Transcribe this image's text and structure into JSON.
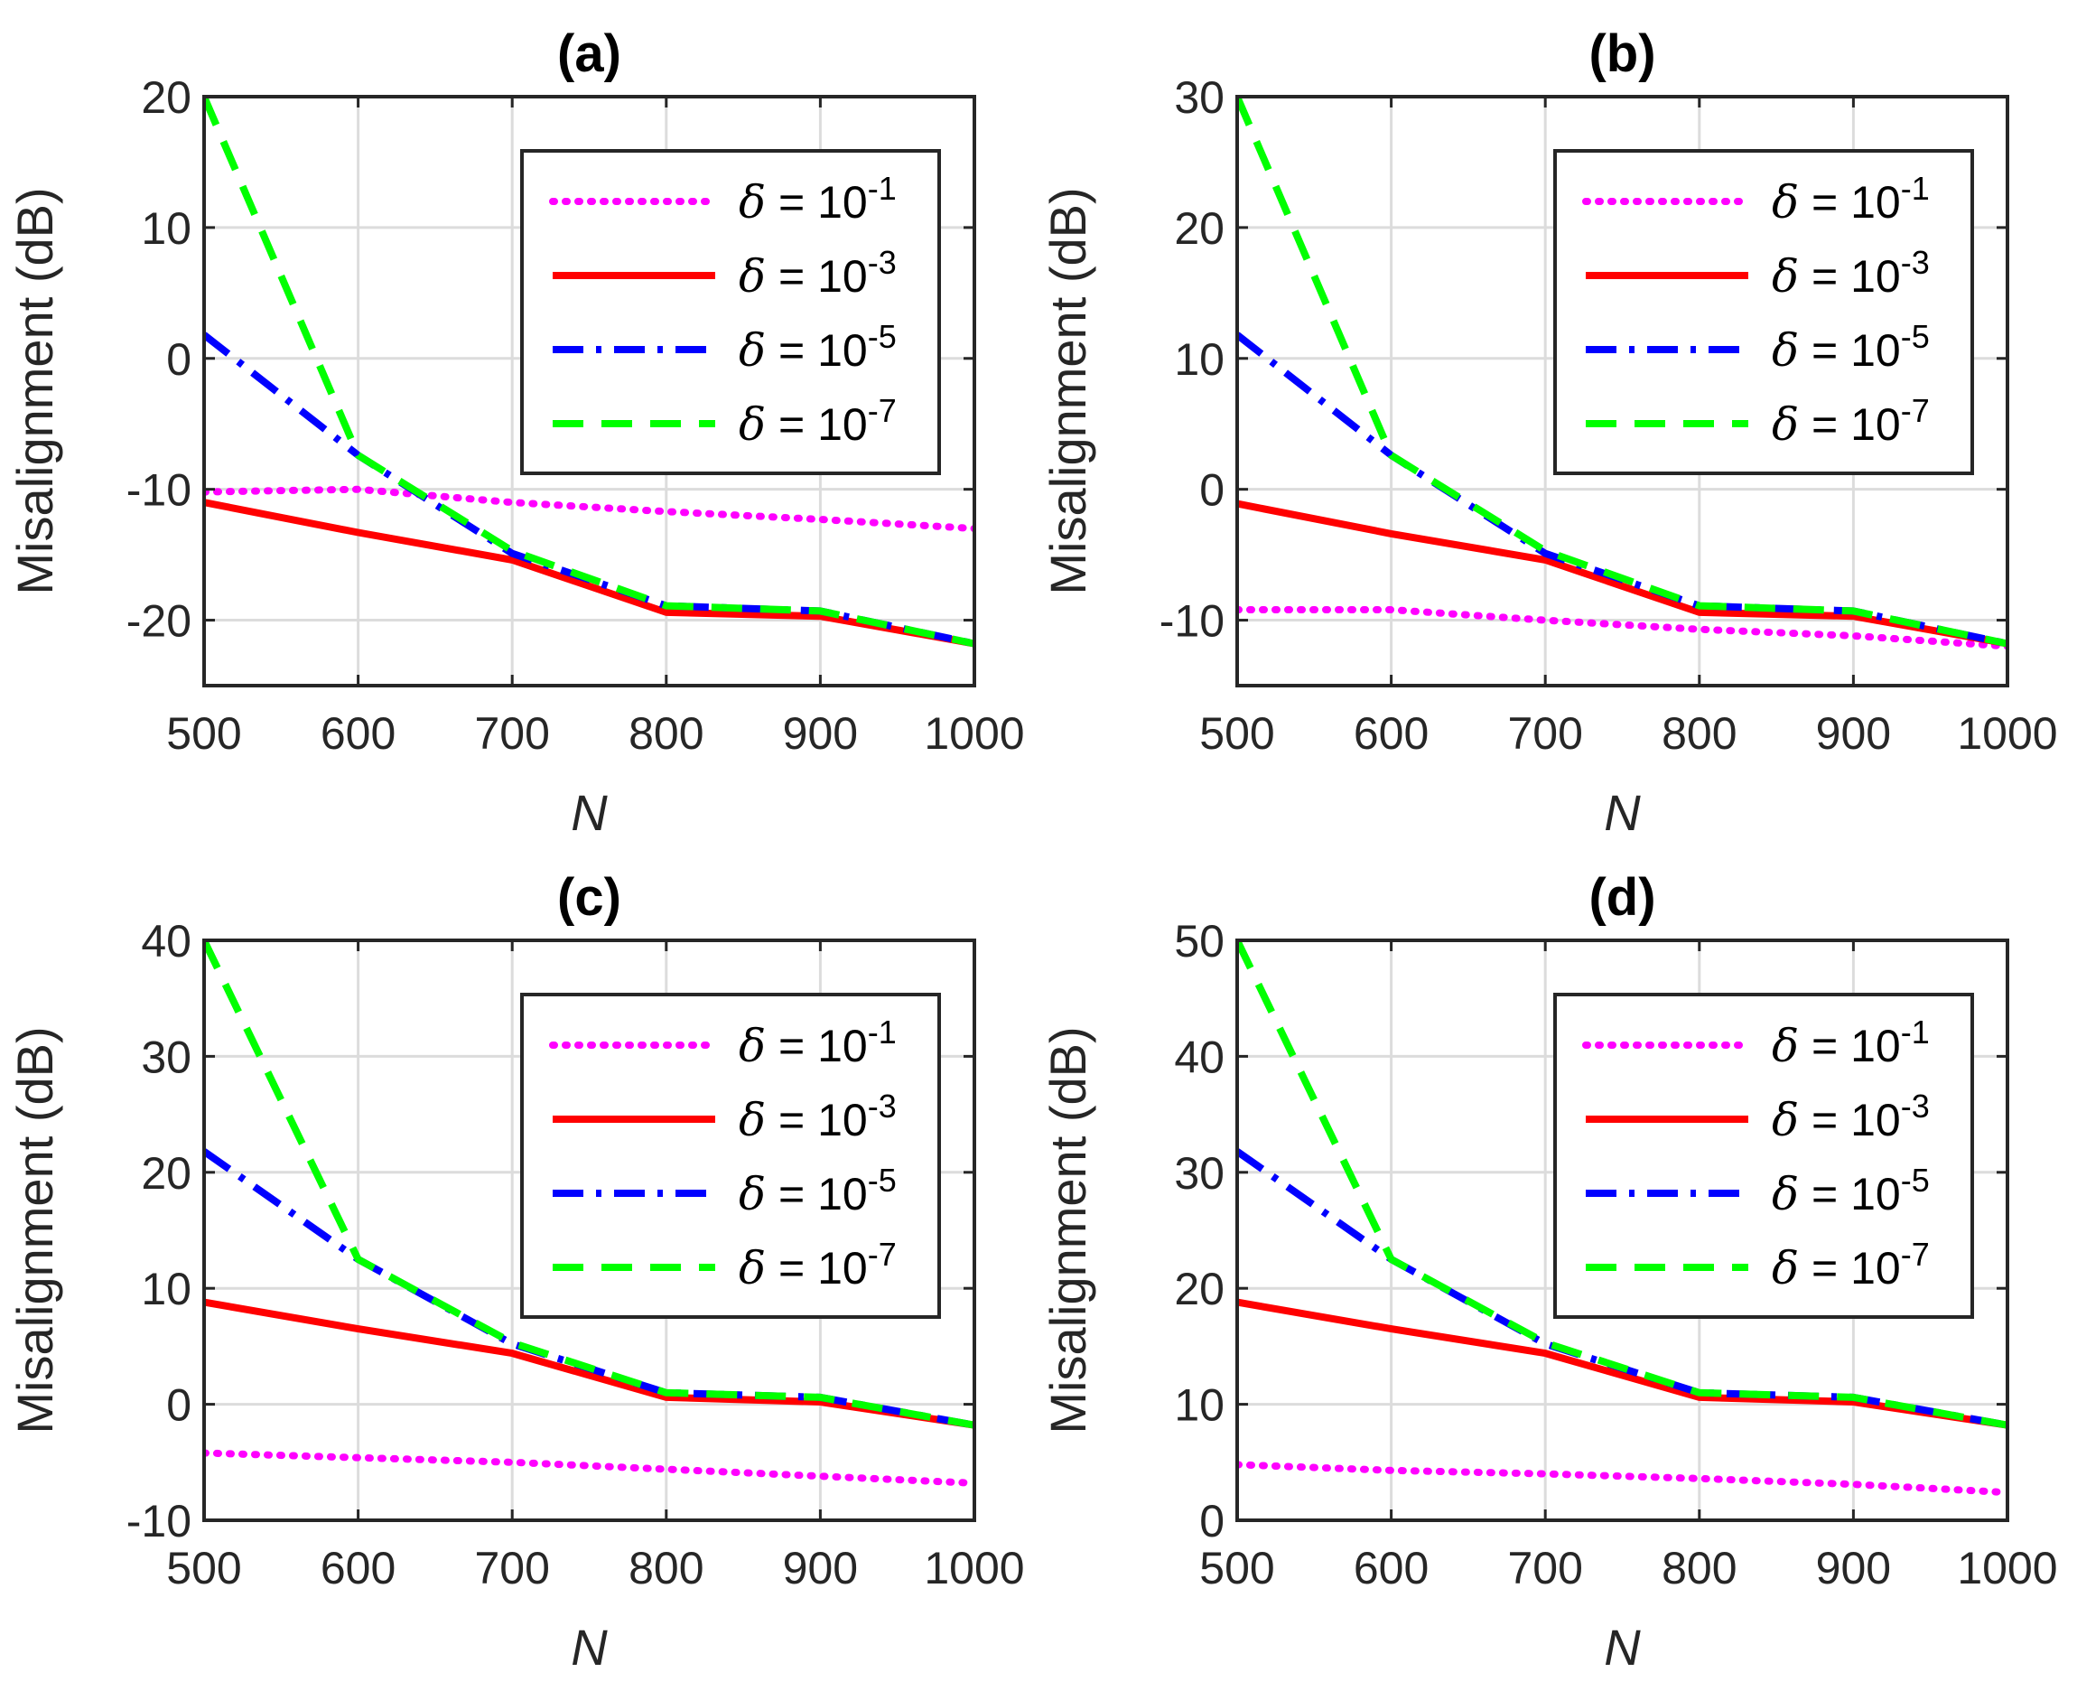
{
  "chart_data": [
    {
      "type": "line",
      "title": "(a)",
      "xlabel": "N",
      "ylabel": "Misalignment (dB)",
      "x": [
        500,
        600,
        700,
        800,
        900,
        1000
      ],
      "xlim": [
        500,
        1000
      ],
      "xticks": [
        500,
        600,
        700,
        800,
        900,
        1000
      ],
      "ylim": [
        -25,
        20
      ],
      "yticks": [
        -20,
        -10,
        0,
        10,
        20
      ],
      "grid": true,
      "legend_position": "top-right",
      "series": [
        {
          "name": "δ = 10^-1",
          "delta": "δ",
          "base": "= 10",
          "exp": "-1",
          "color": "#ff00ff",
          "style": "dotted",
          "values": [
            -10.2,
            -10.0,
            -11.0,
            -11.7,
            -12.3,
            -13.0
          ]
        },
        {
          "name": "δ = 10^-3",
          "delta": "δ",
          "base": "= 10",
          "exp": "-3",
          "color": "#ff0000",
          "style": "solid",
          "values": [
            -11.0,
            -13.3,
            -15.4,
            -19.4,
            -19.7,
            -21.8
          ]
        },
        {
          "name": "δ = 10^-5",
          "delta": "δ",
          "base": "= 10",
          "exp": "-5",
          "color": "#0000ff",
          "style": "dashdot",
          "values": [
            1.8,
            -7.4,
            -14.9,
            -18.9,
            -19.3,
            -21.8
          ]
        },
        {
          "name": "δ = 10^-7",
          "delta": "δ",
          "base": "= 10",
          "exp": "-7",
          "color": "#00ff00",
          "style": "dashed",
          "values": [
            20.0,
            -7.4,
            -14.7,
            -18.9,
            -19.3,
            -21.8
          ]
        }
      ]
    },
    {
      "type": "line",
      "title": "(b)",
      "xlabel": "N",
      "ylabel": "Misalignment (dB)",
      "x": [
        500,
        600,
        700,
        800,
        900,
        1000
      ],
      "xlim": [
        500,
        1000
      ],
      "xticks": [
        500,
        600,
        700,
        800,
        900,
        1000
      ],
      "ylim": [
        -15,
        30
      ],
      "yticks": [
        -10,
        0,
        10,
        20,
        30
      ],
      "grid": true,
      "legend_position": "top-right",
      "series": [
        {
          "name": "δ = 10^-1",
          "delta": "δ",
          "base": "= 10",
          "exp": "-1",
          "color": "#ff00ff",
          "style": "dotted",
          "values": [
            -9.2,
            -9.2,
            -10.0,
            -10.7,
            -11.2,
            -12.0
          ]
        },
        {
          "name": "δ = 10^-3",
          "delta": "δ",
          "base": "= 10",
          "exp": "-3",
          "color": "#ff0000",
          "style": "solid",
          "values": [
            -1.1,
            -3.4,
            -5.4,
            -9.4,
            -9.7,
            -11.8
          ]
        },
        {
          "name": "δ = 10^-5",
          "delta": "δ",
          "base": "= 10",
          "exp": "-5",
          "color": "#0000ff",
          "style": "dashdot",
          "values": [
            11.8,
            2.6,
            -4.9,
            -8.9,
            -9.3,
            -11.8
          ]
        },
        {
          "name": "δ = 10^-7",
          "delta": "δ",
          "base": "= 10",
          "exp": "-7",
          "color": "#00ff00",
          "style": "dashed",
          "values": [
            30.0,
            2.6,
            -4.7,
            -8.9,
            -9.3,
            -11.8
          ]
        }
      ]
    },
    {
      "type": "line",
      "title": "(c)",
      "xlabel": "N",
      "ylabel": "Misalignment (dB)",
      "x": [
        500,
        600,
        700,
        800,
        900,
        1000
      ],
      "xlim": [
        500,
        1000
      ],
      "xticks": [
        500,
        600,
        700,
        800,
        900,
        1000
      ],
      "ylim": [
        -10,
        40
      ],
      "yticks": [
        -10,
        0,
        10,
        20,
        30,
        40
      ],
      "grid": true,
      "legend_position": "top-right",
      "series": [
        {
          "name": "δ = 10^-1",
          "delta": "δ",
          "base": "= 10",
          "exp": "-1",
          "color": "#ff00ff",
          "style": "dotted",
          "values": [
            -4.2,
            -4.6,
            -5.0,
            -5.6,
            -6.2,
            -6.8
          ]
        },
        {
          "name": "δ = 10^-3",
          "delta": "δ",
          "base": "= 10",
          "exp": "-3",
          "color": "#ff0000",
          "style": "solid",
          "values": [
            8.8,
            6.5,
            4.4,
            0.6,
            0.2,
            -1.8
          ]
        },
        {
          "name": "δ = 10^-5",
          "delta": "δ",
          "base": "= 10",
          "exp": "-5",
          "color": "#0000ff",
          "style": "dashdot",
          "values": [
            21.8,
            12.5,
            5.2,
            1.0,
            0.6,
            -1.8
          ]
        },
        {
          "name": "δ = 10^-7",
          "delta": "δ",
          "base": "= 10",
          "exp": "-7",
          "color": "#00ff00",
          "style": "dashed",
          "values": [
            40.0,
            12.5,
            5.3,
            1.0,
            0.6,
            -1.8
          ]
        }
      ]
    },
    {
      "type": "line",
      "title": "(d)",
      "xlabel": "N",
      "ylabel": "Misalignment (dB)",
      "x": [
        500,
        600,
        700,
        800,
        900,
        1000
      ],
      "xlim": [
        500,
        1000
      ],
      "xticks": [
        500,
        600,
        700,
        800,
        900,
        1000
      ],
      "ylim": [
        0,
        50
      ],
      "yticks": [
        0,
        10,
        20,
        30,
        40,
        50
      ],
      "grid": true,
      "legend_position": "top-right",
      "series": [
        {
          "name": "δ = 10^-1",
          "delta": "δ",
          "base": "= 10",
          "exp": "-1",
          "color": "#ff00ff",
          "style": "dotted",
          "values": [
            4.8,
            4.3,
            4.0,
            3.6,
            3.1,
            2.4
          ]
        },
        {
          "name": "δ = 10^-3",
          "delta": "δ",
          "base": "= 10",
          "exp": "-3",
          "color": "#ff0000",
          "style": "solid",
          "values": [
            18.8,
            16.5,
            14.4,
            10.6,
            10.2,
            8.2
          ]
        },
        {
          "name": "δ = 10^-5",
          "delta": "δ",
          "base": "= 10",
          "exp": "-5",
          "color": "#0000ff",
          "style": "dashdot",
          "values": [
            31.8,
            22.5,
            15.2,
            11.0,
            10.6,
            8.2
          ]
        },
        {
          "name": "δ = 10^-7",
          "delta": "δ",
          "base": "= 10",
          "exp": "-7",
          "color": "#00ff00",
          "style": "dashed",
          "values": [
            50.0,
            22.5,
            15.3,
            11.0,
            10.6,
            8.2
          ]
        }
      ]
    }
  ]
}
